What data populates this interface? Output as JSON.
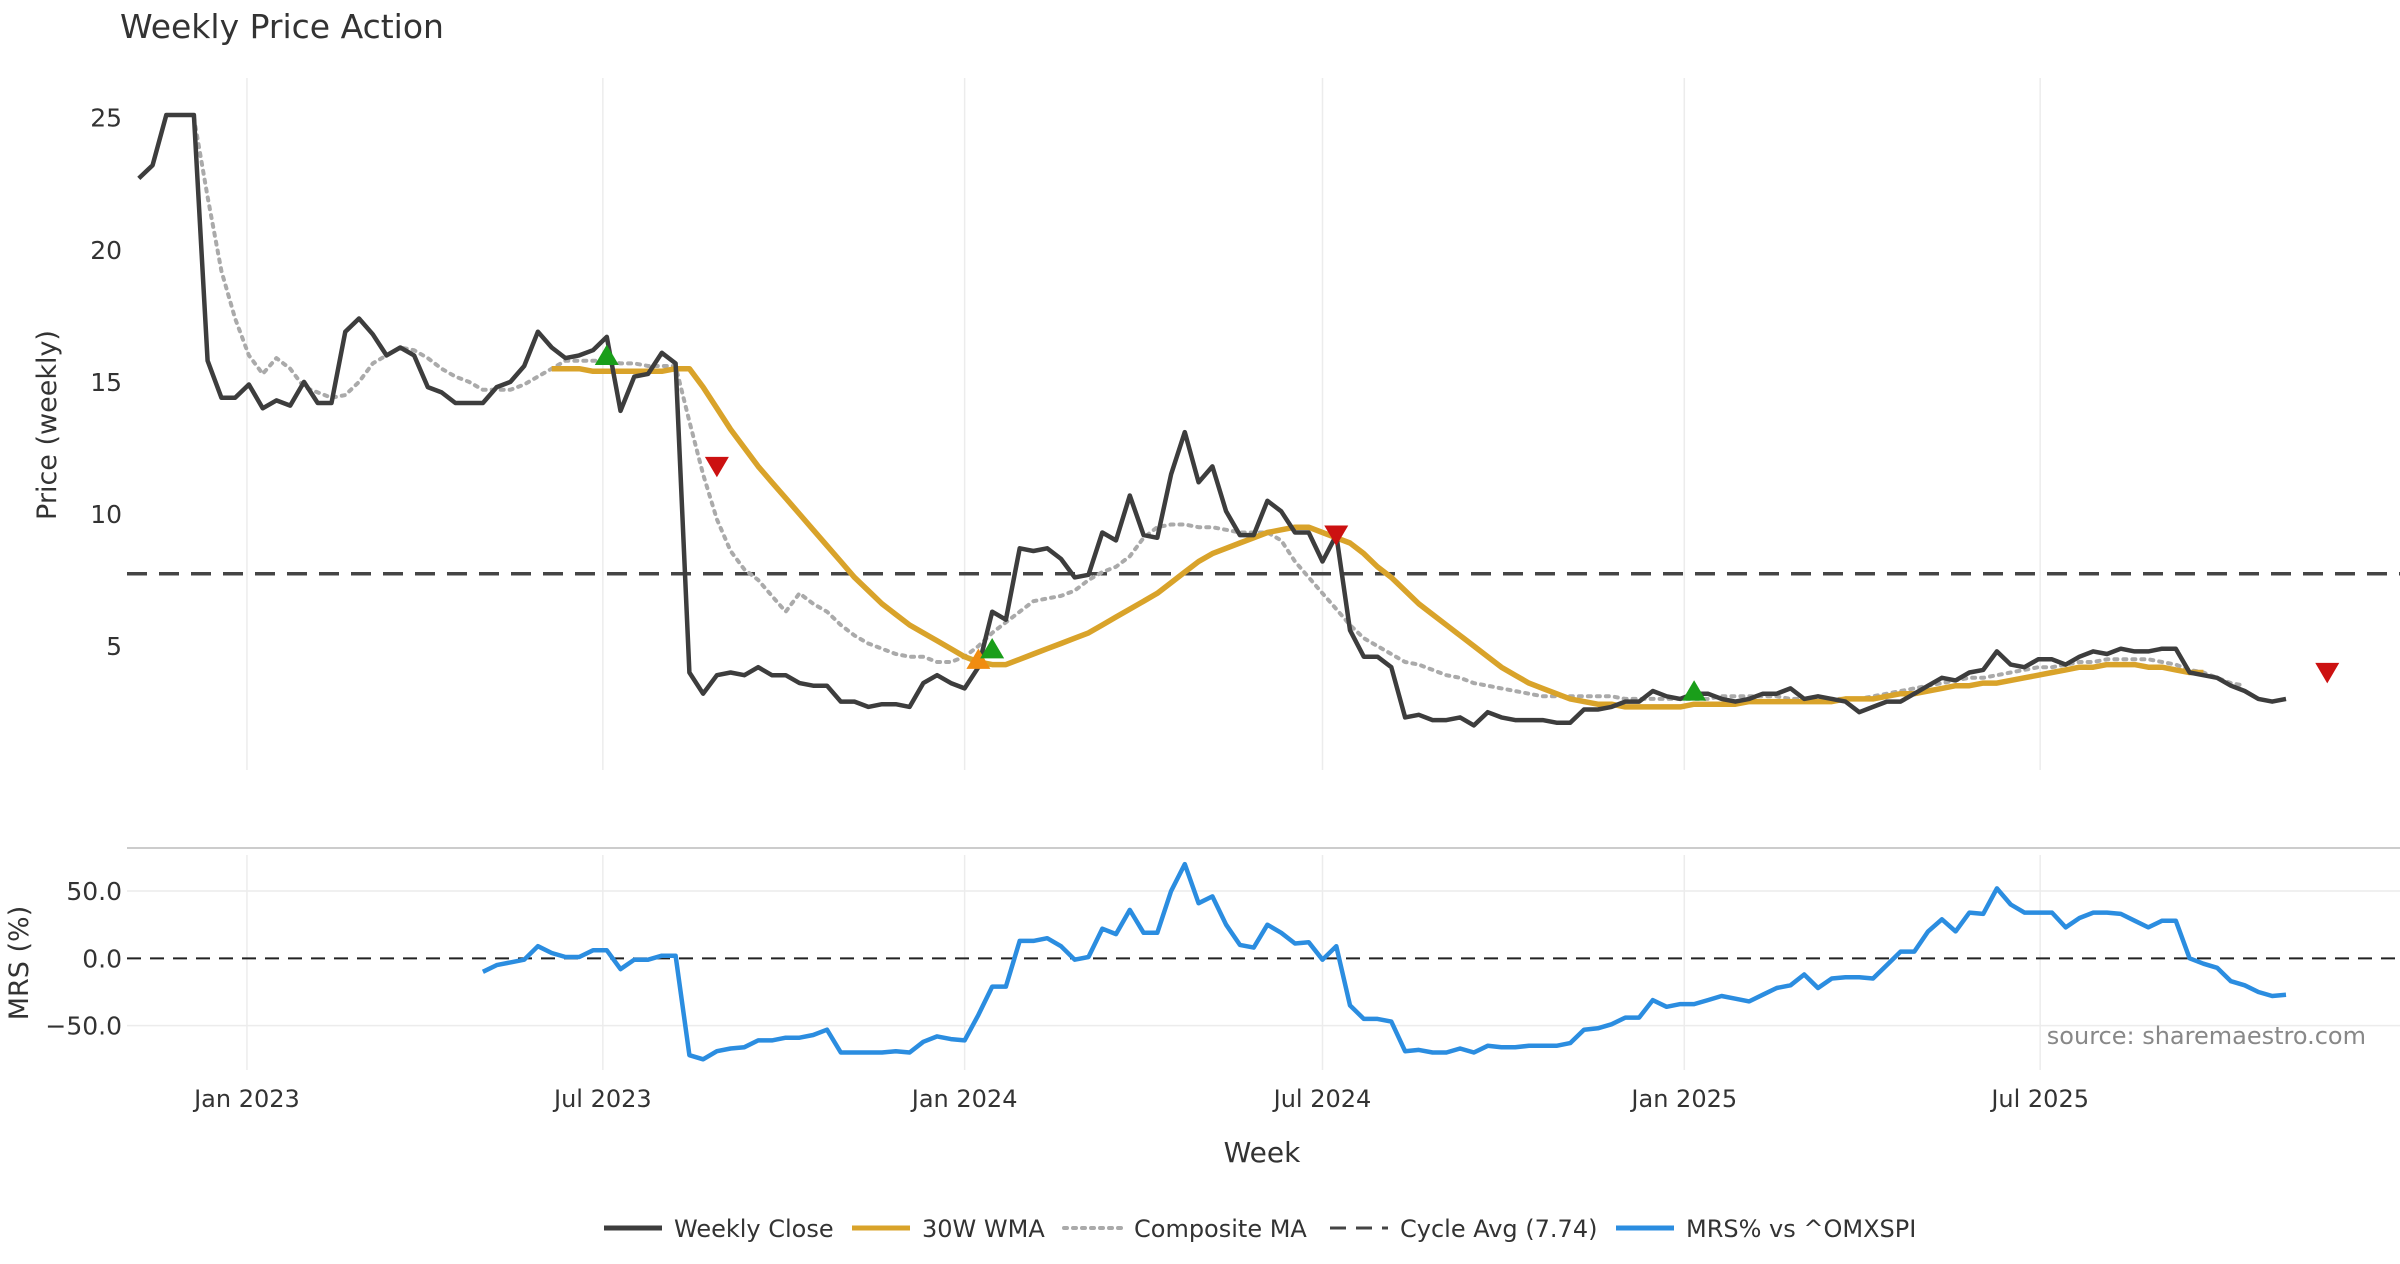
{
  "colors": {
    "close": "#3d3d3d",
    "wma": "#d9a32a",
    "composite": "#aaaaaa",
    "cycle": "#444444",
    "mrs": "#2b8de0",
    "up_marker": "#1a9e1a",
    "down_marker": "#cc1111",
    "orange_marker": "#f08c10",
    "grid": "#ececec"
  },
  "chart_data": [
    {
      "type": "line",
      "title": "Weekly Price Action",
      "ylabel": "Price (weekly)",
      "xlabel": "Week",
      "x_start": "2022-11-07",
      "x_step_days": 7,
      "xlim": [
        "2022-11-01",
        "2025-12-31"
      ],
      "ylim": [
        0.5,
        26.5
      ],
      "yticks": [
        5,
        10,
        15,
        20,
        25
      ],
      "xticks": [
        {
          "date": "2023-01-01",
          "label": "Jan 2023"
        },
        {
          "date": "2023-07-01",
          "label": "Jul 2023"
        },
        {
          "date": "2024-01-01",
          "label": "Jan 2024"
        },
        {
          "date": "2024-07-01",
          "label": "Jul 2024"
        },
        {
          "date": "2025-01-01",
          "label": "Jan 2025"
        },
        {
          "date": "2025-07-01",
          "label": "Jul 2025"
        }
      ],
      "series": [
        {
          "name": "Weekly Close",
          "values": [
            22.7,
            23.2,
            25.1,
            25.1,
            25.1,
            15.8,
            14.4,
            14.4,
            14.9,
            14.0,
            14.3,
            14.1,
            15.0,
            14.2,
            14.2,
            16.9,
            17.4,
            16.8,
            16.0,
            16.3,
            16.0,
            14.8,
            14.6,
            14.2,
            14.2,
            14.2,
            14.8,
            15.0,
            15.6,
            16.9,
            16.3,
            15.9,
            16.0,
            16.2,
            16.7,
            13.9,
            15.2,
            15.3,
            16.1,
            15.7,
            4.0,
            3.2,
            3.9,
            4.0,
            3.9,
            4.2,
            3.9,
            3.9,
            3.6,
            3.5,
            3.5,
            2.9,
            2.9,
            2.7,
            2.8,
            2.8,
            2.7,
            3.6,
            3.9,
            3.6,
            3.4,
            4.2,
            6.3,
            6.0,
            8.7,
            8.6,
            8.7,
            8.3,
            7.6,
            7.7,
            9.3,
            9.0,
            10.7,
            9.2,
            9.1,
            11.5,
            13.1,
            11.2,
            11.8,
            10.1,
            9.2,
            9.2,
            10.5,
            10.1,
            9.3,
            9.3,
            8.2,
            9.2,
            5.6,
            4.6,
            4.6,
            4.2,
            2.3,
            2.4,
            2.2,
            2.2,
            2.3,
            2.0,
            2.5,
            2.3,
            2.2,
            2.2,
            2.2,
            2.1,
            2.1,
            2.6,
            2.6,
            2.7,
            2.9,
            2.9,
            3.3,
            3.1,
            3.0,
            3.2,
            3.2,
            3.0,
            2.9,
            3.0,
            3.2,
            3.2,
            3.4,
            3.0,
            3.1,
            3.0,
            2.9,
            2.5,
            2.7,
            2.9,
            2.9,
            3.2,
            3.5,
            3.8,
            3.7,
            4.0,
            4.1,
            4.8,
            4.3,
            4.2,
            4.5,
            4.5,
            4.3,
            4.6,
            4.8,
            4.7,
            4.9,
            4.8,
            4.8,
            4.9,
            4.9,
            4.0,
            3.9,
            3.8,
            3.5,
            3.3,
            3.0,
            2.9,
            3.0
          ]
        },
        {
          "name": "30W WMA",
          "start_index": 30,
          "values": [
            15.5,
            15.5,
            15.5,
            15.4,
            15.4,
            15.4,
            15.4,
            15.4,
            15.4,
            15.5,
            15.5,
            14.8,
            14.0,
            13.2,
            12.5,
            11.8,
            11.2,
            10.6,
            10.0,
            9.4,
            8.8,
            8.2,
            7.6,
            7.1,
            6.6,
            6.2,
            5.8,
            5.5,
            5.2,
            4.9,
            4.6,
            4.4,
            4.3,
            4.3,
            4.5,
            4.7,
            4.9,
            5.1,
            5.3,
            5.5,
            5.8,
            6.1,
            6.4,
            6.7,
            7.0,
            7.4,
            7.8,
            8.2,
            8.5,
            8.7,
            8.9,
            9.1,
            9.3,
            9.4,
            9.5,
            9.5,
            9.3,
            9.1,
            8.9,
            8.5,
            8.0,
            7.6,
            7.1,
            6.6,
            6.2,
            5.8,
            5.4,
            5.0,
            4.6,
            4.2,
            3.9,
            3.6,
            3.4,
            3.2,
            3.0,
            2.9,
            2.8,
            2.8,
            2.7,
            2.7,
            2.7,
            2.7,
            2.7,
            2.8,
            2.8,
            2.8,
            2.8,
            2.9,
            2.9,
            2.9,
            2.9,
            2.9,
            2.9,
            2.9,
            3.0,
            3.0,
            3.0,
            3.1,
            3.2,
            3.2,
            3.3,
            3.4,
            3.5,
            3.5,
            3.6,
            3.6,
            3.7,
            3.8,
            3.9,
            4.0,
            4.1,
            4.2,
            4.2,
            4.3,
            4.3,
            4.3,
            4.2,
            4.2,
            4.1,
            4.0,
            4.0
          ]
        },
        {
          "name": "Composite MA",
          "start_index": 4,
          "values": [
            25.0,
            22.0,
            19.2,
            17.4,
            16.0,
            15.3,
            15.9,
            15.5,
            14.8,
            14.6,
            14.4,
            14.5,
            15.0,
            15.7,
            16.0,
            16.3,
            16.2,
            15.9,
            15.5,
            15.2,
            15.0,
            14.7,
            14.7,
            14.7,
            14.9,
            15.2,
            15.5,
            15.8,
            15.8,
            15.8,
            15.8,
            15.7,
            15.7,
            15.6,
            15.6,
            15.6,
            13.5,
            11.5,
            9.8,
            8.6,
            7.9,
            7.5,
            6.9,
            6.3,
            7.0,
            6.6,
            6.3,
            5.8,
            5.4,
            5.1,
            4.9,
            4.7,
            4.6,
            4.6,
            4.4,
            4.4,
            4.6,
            5.0,
            5.5,
            5.9,
            6.3,
            6.7,
            6.8,
            6.9,
            7.1,
            7.5,
            7.8,
            8.0,
            8.4,
            9.1,
            9.5,
            9.6,
            9.6,
            9.5,
            9.5,
            9.4,
            9.3,
            9.3,
            9.3,
            9.0,
            8.2,
            7.6,
            7.0,
            6.4,
            5.8,
            5.3,
            5.0,
            4.7,
            4.4,
            4.3,
            4.1,
            3.9,
            3.8,
            3.6,
            3.5,
            3.4,
            3.3,
            3.2,
            3.1,
            3.1,
            3.1,
            3.1,
            3.1,
            3.1,
            3.0,
            3.0,
            3.0,
            3.0,
            3.0,
            3.0,
            3.0,
            3.1,
            3.1,
            3.1,
            3.1,
            3.1,
            3.0,
            3.0,
            3.0,
            3.0,
            3.0,
            3.0,
            3.1,
            3.2,
            3.3,
            3.4,
            3.5,
            3.6,
            3.7,
            3.8,
            3.8,
            3.9,
            4.0,
            4.1,
            4.2,
            4.2,
            4.3,
            4.4,
            4.4,
            4.5,
            4.5,
            4.5,
            4.5,
            4.4,
            4.3,
            4.1,
            4.0,
            3.8,
            3.6,
            3.5
          ]
        },
        {
          "name": "Cycle Avg (7.74)",
          "constant": 7.74
        }
      ],
      "markers": [
        {
          "type": "up",
          "week_index": 34,
          "value": 16.0
        },
        {
          "type": "down",
          "week_index": 42,
          "value": 11.8
        },
        {
          "type": "up-orange",
          "week_index": 61,
          "value": 4.5
        },
        {
          "type": "up",
          "week_index": 62,
          "value": 4.9
        },
        {
          "type": "down",
          "week_index": 87,
          "value": 9.2
        },
        {
          "type": "up",
          "week_index": 113,
          "value": 3.3
        },
        {
          "type": "down",
          "week_index": 159,
          "value": 4.0
        }
      ]
    },
    {
      "type": "line",
      "ylabel": "MRS (%)",
      "ylim": [
        -80,
        82
      ],
      "yticks": [
        50,
        0,
        -50
      ],
      "ytick_labels": [
        "50.0",
        "0.0",
        "−50.0"
      ],
      "zero_line": 0,
      "series": [
        {
          "name": "MRS% vs ^OMXSPI",
          "start_index": 25,
          "values": [
            -10,
            -5,
            -3,
            -1,
            9,
            4,
            1,
            1,
            6,
            6,
            -8,
            -1,
            -1,
            2,
            2,
            -72,
            -75,
            -69,
            -67,
            -66,
            -61,
            -61,
            -59,
            -59,
            -57,
            -53,
            -70,
            -70,
            -70,
            -70,
            -69,
            -70,
            -62,
            -58,
            -60,
            -61,
            -42,
            -21,
            -21,
            13,
            13,
            15,
            9,
            -1,
            1,
            22,
            18,
            36,
            19,
            19,
            50,
            70,
            41,
            46,
            25,
            10,
            8,
            25,
            19,
            11,
            12,
            -1,
            9,
            -35,
            -45,
            -45,
            -47,
            -69,
            -68,
            -70,
            -70,
            -67,
            -70,
            -65,
            -66,
            -66,
            -65,
            -65,
            -65,
            -63,
            -53,
            -52,
            -49,
            -44,
            -44,
            -31,
            -36,
            -34,
            -34,
            -31,
            -28,
            -30,
            -32,
            -27,
            -22,
            -20,
            -12,
            -22,
            -15,
            -14,
            -14,
            -15,
            -5,
            5,
            5,
            20,
            29,
            20,
            34,
            33,
            52,
            40,
            34,
            34,
            34,
            23,
            30,
            34,
            34,
            33,
            28,
            23,
            28,
            28,
            0,
            -4,
            -7,
            -17,
            -20,
            -25,
            -28,
            -27
          ]
        }
      ]
    }
  ],
  "legend": [
    {
      "label": "Weekly Close",
      "style": "solid",
      "color": "#3d3d3d"
    },
    {
      "label": "30W WMA",
      "style": "solid",
      "color": "#d9a32a"
    },
    {
      "label": "Composite MA",
      "style": "dotted",
      "color": "#aaaaaa"
    },
    {
      "label": "Cycle Avg (7.74)",
      "style": "dashed",
      "color": "#444444"
    },
    {
      "label": "MRS% vs ^OMXSPI",
      "style": "solid",
      "color": "#2b8de0"
    }
  ],
  "source_text": "source: sharemaestro.com"
}
